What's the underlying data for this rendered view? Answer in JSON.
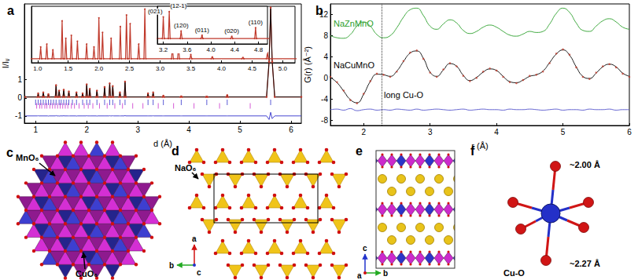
{
  "chart_data": [
    {
      "type": "line",
      "title": "a",
      "xlabel": "d (Å)",
      "ylabel": "I/Iᵥ",
      "grid": false,
      "xlim": [
        0.78,
        6.2
      ],
      "xticks": [
        1,
        2,
        3,
        4,
        5,
        6
      ],
      "ylim": [
        -1.4,
        5.2
      ],
      "yticks": [
        -1,
        0,
        1
      ],
      "x": [
        0.8,
        1.035,
        1.05,
        1.065,
        1.135,
        1.15,
        1.165,
        1.235,
        1.25,
        1.265,
        1.385,
        1.4,
        1.415,
        1.445,
        1.46,
        1.475,
        1.535,
        1.55,
        1.565,
        1.635,
        1.65,
        1.665,
        1.785,
        1.8,
        1.815,
        1.905,
        1.92,
        1.935,
        1.985,
        2.0,
        2.015,
        2.045,
        2.06,
        2.075,
        2.185,
        2.2,
        2.215,
        2.335,
        2.35,
        2.365,
        2.435,
        2.45,
        2.465,
        2.495,
        2.51,
        2.525,
        2.635,
        2.65,
        2.665,
        2.735,
        2.75,
        2.765,
        3.185,
        3.2,
        3.215,
        3.285,
        3.3,
        3.315,
        3.485,
        3.5,
        3.515,
        3.835,
        3.85,
        3.865,
        4.335,
        4.35,
        4.365,
        4.735,
        4.75,
        4.765,
        5.52,
        5.57,
        5.6,
        5.63,
        5.68,
        6.2
      ],
      "series": [
        {
          "type": "line",
          "marker": "circle",
          "color": "#c0392b",
          "values": [
            0.05,
            0.05,
            0.25,
            0.05,
            0.05,
            0.3,
            0.05,
            0.05,
            0.2,
            0.05,
            0.05,
            0.7,
            0.05,
            0.05,
            0.4,
            0.05,
            0.05,
            0.45,
            0.05,
            0.05,
            0.35,
            0.05,
            0.05,
            0.3,
            0.05,
            0.05,
            0.25,
            0.05,
            0.05,
            0.75,
            0.05,
            0.05,
            0.5,
            0.05,
            0.05,
            0.4,
            0.05,
            0.05,
            0.6,
            0.05,
            0.05,
            0.8,
            0.05,
            0.05,
            0.65,
            0.05,
            0.05,
            0.3,
            0.05,
            0.05,
            0.9,
            0.05,
            0.05,
            0.25,
            0.05,
            0.05,
            0.3,
            0.05,
            0.05,
            0.12,
            0.05,
            0.05,
            0.08,
            0.05,
            0.05,
            0.07,
            0.05,
            0.05,
            0.15,
            0.05,
            0.05,
            2.0,
            5.0,
            2.0,
            0.05,
            0.05
          ]
        },
        {
          "type": "line",
          "color": "#000000",
          "values": [
            0.05,
            0.05,
            0.24,
            0.05,
            0.05,
            0.3,
            0.05,
            0.05,
            0.21,
            0.05,
            0.05,
            0.68,
            0.05,
            0.05,
            0.41,
            0.05,
            0.05,
            0.44,
            0.05,
            0.05,
            0.35,
            0.05,
            0.05,
            0.31,
            0.05,
            0.05,
            0.25,
            0.05,
            0.05,
            0.74,
            0.05,
            0.05,
            0.5,
            0.05,
            0.05,
            0.41,
            0.05,
            0.05,
            0.6,
            0.05,
            0.05,
            0.79,
            0.05,
            0.05,
            0.64,
            0.05,
            0.05,
            0.3,
            0.05,
            0.05,
            0.88,
            0.05,
            0.05,
            0.25,
            0.05,
            0.05,
            0.29,
            0.05,
            0.05,
            0.12,
            0.05,
            0.05,
            0.08,
            0.05,
            0.05,
            0.07,
            0.05,
            0.05,
            0.15,
            0.05,
            0.05,
            2.05,
            4.95,
            2.05,
            0.05,
            0.05
          ]
        },
        {
          "type": "line",
          "color": "#3333cc",
          "values": [
            -1,
            -1,
            -0.99,
            -1,
            -1,
            -1,
            -1,
            -1,
            -1.01,
            -1,
            -1,
            -0.98,
            -1,
            -1,
            -1.01,
            -1,
            -1,
            -0.99,
            -1,
            -1,
            -1,
            -1,
            -1,
            -1.01,
            -1,
            -1,
            -1,
            -1,
            -1,
            -0.99,
            -1,
            -1,
            -1,
            -1,
            -1,
            -1.01,
            -1,
            -1,
            -1,
            -1,
            -1,
            -0.99,
            -1,
            -1,
            -0.99,
            -1,
            -1,
            -1,
            -1,
            -1,
            -0.98,
            -1,
            -1,
            -1,
            -1,
            -1,
            -0.99,
            -1,
            -1,
            -1,
            -1,
            -1,
            -1,
            -1,
            -1,
            -1,
            -1,
            -1,
            -1,
            -1,
            -1,
            -1.2,
            -0.8,
            -1.15,
            -1,
            -1
          ]
        },
        {
          "type": "scatter",
          "marker": "tick",
          "color": "#3333cc",
          "x": [
            1.0,
            1.05,
            1.1,
            1.15,
            1.2,
            1.25,
            1.3,
            1.35,
            1.4,
            1.46,
            1.5,
            1.55,
            1.6,
            1.65,
            1.72,
            1.8,
            1.92,
            2.0,
            2.06,
            2.2,
            2.35,
            2.45,
            2.51,
            2.65,
            2.75,
            3.2,
            3.3,
            3.5,
            3.85,
            4.35,
            4.75,
            5.6
          ],
          "values": [
            -0.25,
            -0.25,
            -0.25,
            -0.25,
            -0.25,
            -0.25,
            -0.25,
            -0.25,
            -0.25,
            -0.25,
            -0.25,
            -0.25,
            -0.25,
            -0.25,
            -0.25,
            -0.25,
            -0.25,
            -0.25,
            -0.25,
            -0.25,
            -0.25,
            -0.25,
            -0.25,
            -0.25,
            -0.25,
            -0.25,
            -0.25,
            -0.25,
            -0.25,
            -0.25,
            -0.25,
            -0.25
          ]
        },
        {
          "type": "scatter",
          "marker": "tick",
          "color": "#cc33cc",
          "x": [
            1.02,
            1.08,
            1.12,
            1.18,
            1.22,
            1.28,
            1.33,
            1.38,
            1.43,
            1.48,
            1.53,
            1.58,
            1.63,
            1.7,
            1.76,
            1.85,
            1.95,
            2.03,
            2.12,
            2.25,
            2.4,
            2.55,
            2.7,
            2.9,
            3.1,
            3.4,
            3.7,
            4.1,
            4.6,
            5.2
          ],
          "values": [
            -0.45,
            -0.45,
            -0.45,
            -0.45,
            -0.45,
            -0.45,
            -0.45,
            -0.45,
            -0.45,
            -0.45,
            -0.45,
            -0.45,
            -0.45,
            -0.45,
            -0.45,
            -0.45,
            -0.45,
            -0.45,
            -0.45,
            -0.45,
            -0.45,
            -0.45,
            -0.45,
            -0.45,
            -0.45,
            -0.45,
            -0.45,
            -0.45,
            -0.45,
            -0.45
          ]
        }
      ],
      "insets": [
        {
          "xlim": [
            0.9,
            5.2
          ],
          "xticks": [
            {
              "value": 1,
              "label": "1.0"
            },
            1.5,
            {
              "value": 2,
              "label": "2.0"
            },
            2.5,
            {
              "value": 3,
              "label": "3.0"
            },
            3.5,
            {
              "value": 4,
              "label": "4.0"
            },
            4.5,
            {
              "value": 5,
              "label": "5.0"
            }
          ],
          "ylim": [
            -0.02,
            0.95
          ],
          "tick_labels": "x"
        },
        {
          "xlim": [
            3.1,
            4.95
          ],
          "xticks": [
            3.2,
            3.6,
            {
              "value": 4,
              "label": "4.0"
            },
            4.4,
            4.8
          ],
          "ylim": [
            0,
            0.35
          ],
          "tick_labels": "x",
          "annotations": [
            {
              "text": "(021)",
              "x": 3.2
            },
            {
              "text": "(12-1)",
              "x": 3.3
            },
            {
              "text": "(120)",
              "x": 3.5
            },
            {
              "text": "(011)",
              "x": 3.85
            },
            {
              "text": "(020)",
              "x": 4.35
            },
            {
              "text": "(110)",
              "x": 4.75
            }
          ]
        }
      ]
    },
    {
      "type": "line",
      "title": "b",
      "xlabel": "r (Å)",
      "ylabel": "G(r) (Å⁻²)",
      "grid": false,
      "xlim": [
        1.5,
        6
      ],
      "xticks": [
        2,
        3,
        4,
        5,
        6
      ],
      "ylim": [
        -9,
        14
      ],
      "yticks": [
        -8,
        -4,
        0,
        4,
        8,
        12
      ],
      "x": [
        1.5,
        1.6,
        1.7,
        1.8,
        1.9,
        2,
        2.1,
        2.2,
        2.3,
        2.4,
        2.5,
        2.6,
        2.7,
        2.8,
        2.9,
        3,
        3.1,
        3.2,
        3.3,
        3.4,
        3.5,
        3.6,
        3.7,
        3.8,
        3.9,
        4,
        4.1,
        4.2,
        4.3,
        4.4,
        4.5,
        4.6,
        4.7,
        4.8,
        4.9,
        5,
        5.1,
        5.2,
        5.3,
        5.4,
        5.5,
        5.6,
        5.7,
        5.8,
        5.9,
        6
      ],
      "series": [
        {
          "name": "NaZnMnO",
          "type": "line",
          "color": "#2ca02c",
          "values": [
            8.0,
            7.6,
            7.5,
            8.2,
            9.8,
            10.6,
            9.8,
            8.2,
            7.6,
            8.0,
            9.5,
            11.5,
            12.9,
            13.2,
            11.8,
            9.8,
            9.2,
            10.2,
            11.0,
            10.4,
            9.0,
            8.4,
            8.8,
            9.6,
            10.0,
            9.6,
            8.8,
            8.1,
            7.9,
            8.3,
            8.8,
            8.6,
            8.8,
            10.2,
            12.2,
            13.2,
            12.4,
            10.4,
            9.0,
            8.8,
            9.8,
            10.8,
            11.2,
            10.6,
            9.6,
            9.2
          ]
        },
        {
          "type": "scatter",
          "marker": "circle",
          "color": "#c0392b",
          "values": [
            0.2,
            -0.8,
            -2.4,
            -4.2,
            -4.8,
            -3.0,
            -0.6,
            0.8,
            0.6,
            0.2,
            1.2,
            3.2,
            4.8,
            5.2,
            3.6,
            1.0,
            0.2,
            1.6,
            2.8,
            2.2,
            0.4,
            -0.6,
            0.0,
            1.2,
            1.8,
            1.4,
            0.2,
            -0.8,
            -1.0,
            -0.4,
            0.4,
            0.6,
            1.2,
            2.8,
            4.6,
            5.4,
            4.4,
            2.0,
            0.2,
            -0.2,
            1.0,
            2.2,
            2.6,
            2.0,
            0.8,
            0.2
          ]
        },
        {
          "name": "NaCuMnO",
          "type": "line",
          "color": "#000000",
          "values": [
            0.1,
            -0.9,
            -2.5,
            -4.1,
            -4.7,
            -3.1,
            -0.7,
            0.7,
            0.6,
            0.3,
            1.3,
            3.1,
            4.7,
            5.1,
            3.7,
            1.1,
            0.3,
            1.5,
            2.7,
            2.2,
            0.5,
            -0.5,
            0.1,
            1.1,
            1.7,
            1.4,
            0.3,
            -0.7,
            -0.9,
            -0.4,
            0.3,
            0.6,
            1.3,
            2.9,
            4.5,
            5.3,
            4.3,
            2.1,
            0.3,
            -0.1,
            0.9,
            2.1,
            2.6,
            2.1,
            0.9,
            0.3
          ]
        },
        {
          "type": "line",
          "color": "#5555cc",
          "values": [
            -6.0,
            -5.9,
            -6.1,
            -5.8,
            -6.2,
            -6.0,
            -5.9,
            -6.1,
            -6.0,
            -6.1,
            -5.9,
            -6.0,
            -6.1,
            -5.9,
            -6.1,
            -6.0,
            -5.9,
            -6.0,
            -6.1,
            -6.0,
            -5.9,
            -6.1,
            -6.0,
            -5.9,
            -6.0,
            -6.0,
            -6.1,
            -5.9,
            -6.0,
            -6.0,
            -5.9,
            -6.0,
            -6.1,
            -6.0,
            -5.9,
            -6.1,
            -6.0,
            -6.0,
            -6.1,
            -5.9,
            -6.0,
            -6.0,
            -5.9,
            -6.1,
            -6.0,
            -6.0
          ]
        }
      ],
      "annotations": [
        {
          "text": "long Cu-O",
          "x": 2.27,
          "line_style": "dotted"
        }
      ]
    }
  ],
  "panels": [
    {
      "label": "c",
      "texts": [
        "MnO₆",
        "CuO₆"
      ]
    },
    {
      "label": "d",
      "texts": [
        "NaO₆"
      ],
      "axes": [
        "a",
        "b",
        "c"
      ]
    },
    {
      "label": "e",
      "axes": [
        "c",
        "b",
        "a"
      ]
    },
    {
      "label": "f",
      "texts": [
        "~2.00 Å",
        "~2.27 Å",
        "Cu-O"
      ]
    }
  ]
}
